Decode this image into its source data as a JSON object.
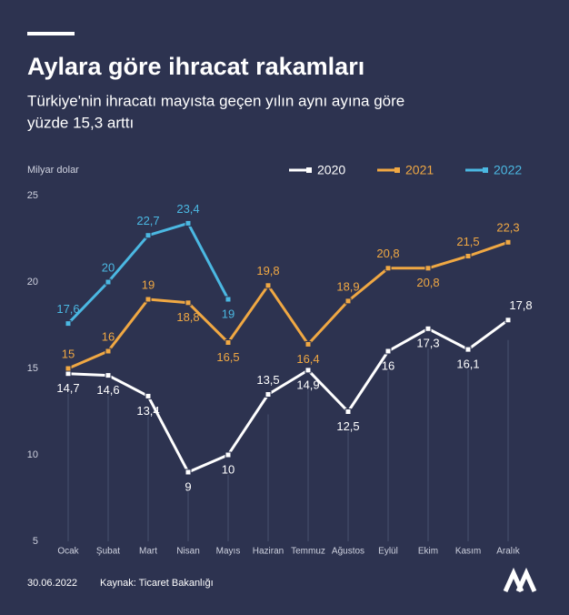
{
  "chart_data": {
    "type": "line",
    "title": "Aylara göre ihracat rakamları",
    "subtitle": [
      "Türkiye'nin ihracatı mayısta geçen yılın aynı ayına göre",
      "yüzde 15,3 arttı"
    ],
    "y_label": "Milyar dolar",
    "categories": [
      "Ocak",
      "Şubat",
      "Mart",
      "Nisan",
      "Mayıs",
      "Haziran",
      "Temmuz",
      "Ağustos",
      "Eylül",
      "Ekim",
      "Kasım",
      "Aralık"
    ],
    "series": [
      {
        "name": "2020",
        "color": "#ffffff",
        "values": [
          14.7,
          14.6,
          13.4,
          9,
          10,
          13.5,
          14.9,
          12.5,
          16,
          17.3,
          16.1,
          17.8
        ],
        "value_labels": [
          "14,7",
          "14,6",
          "13,4",
          "9",
          "10",
          "13,5",
          "14,9",
          "12,5",
          "16",
          "17,3",
          "16,1",
          "17,8"
        ]
      },
      {
        "name": "2021",
        "color": "#f0a843",
        "values": [
          15,
          16,
          19,
          18.8,
          16.5,
          19.8,
          16.4,
          18.9,
          20.8,
          20.8,
          21.5,
          22.3
        ],
        "value_labels": [
          "15",
          "16",
          "19",
          "18,8",
          "16,5",
          "19,8",
          "16,4",
          "18,9",
          "20,8",
          "20,8",
          "21,5",
          "22,3"
        ]
      },
      {
        "name": "2022",
        "color": "#4bb8e2",
        "values": [
          17.6,
          20,
          22.7,
          23.4,
          19,
          null,
          null,
          null,
          null,
          null,
          null,
          null
        ],
        "value_labels": [
          "17,6",
          "20",
          "22,7",
          "23,4",
          "19",
          null,
          null,
          null,
          null,
          null,
          null,
          null
        ]
      }
    ],
    "ylim": [
      5,
      25
    ],
    "yticks": [
      5,
      10,
      15,
      20,
      25
    ],
    "date": "30.06.2022",
    "source": "Kaynak: Ticaret Bakanlığı"
  }
}
